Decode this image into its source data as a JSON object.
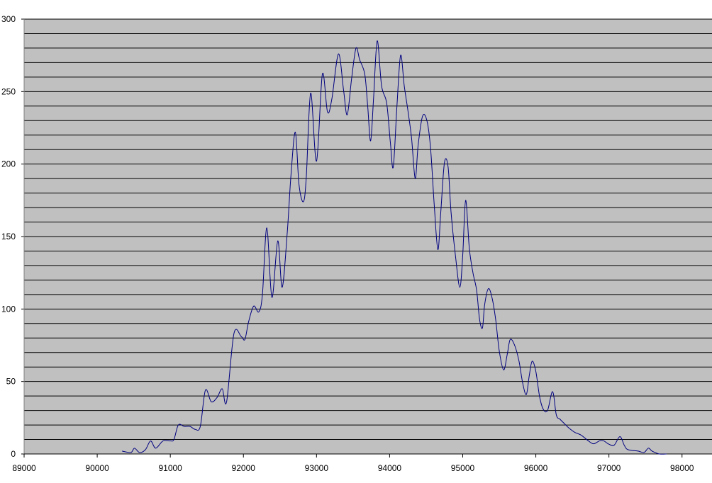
{
  "chart_data": {
    "type": "line",
    "xlim": [
      89000,
      98410
    ],
    "xticks": [
      89000,
      90000,
      91000,
      92000,
      93000,
      94000,
      95000,
      96000,
      97000,
      98000
    ],
    "ylim": [
      0,
      300
    ],
    "yticks": [
      0,
      50,
      100,
      150,
      200,
      250,
      300
    ],
    "ygrid": [
      10,
      20,
      30,
      40,
      50,
      60,
      70,
      80,
      90,
      100,
      110,
      120,
      130,
      140,
      150,
      160,
      170,
      180,
      190,
      200,
      210,
      220,
      230,
      240,
      250,
      260,
      270,
      280,
      290,
      300
    ],
    "grid": true,
    "plot_color": "#c0c0c0",
    "series": [
      {
        "color": "#000080",
        "x": [
          90340,
          90460,
          90510,
          90580,
          90660,
          90730,
          90800,
          90900,
          91000,
          91050,
          91110,
          91190,
          91270,
          91340,
          91410,
          91480,
          91560,
          91640,
          91710,
          91770,
          91870,
          91970,
          92020,
          92070,
          92140,
          92210,
          92260,
          92320,
          92390,
          92470,
          92530,
          92600,
          92650,
          92710,
          92760,
          92820,
          92860,
          92920,
          93000,
          93080,
          93150,
          93210,
          93300,
          93370,
          93420,
          93480,
          93540,
          93590,
          93660,
          93700,
          93740,
          93780,
          93830,
          93890,
          93960,
          94010,
          94050,
          94100,
          94150,
          94200,
          94250,
          94300,
          94350,
          94390,
          94450,
          94510,
          94560,
          94610,
          94660,
          94700,
          94750,
          94800,
          94840,
          94900,
          94960,
          95000,
          95040,
          95090,
          95140,
          95190,
          95230,
          95270,
          95300,
          95350,
          95400,
          95450,
          95500,
          95560,
          95610,
          95650,
          95710,
          95770,
          95820,
          95870,
          95910,
          95950,
          96000,
          96050,
          96100,
          96160,
          96230,
          96280,
          96330,
          96390,
          96450,
          96530,
          96620,
          96720,
          96790,
          96870,
          96930,
          96990,
          97070,
          97150,
          97210,
          97260,
          97400,
          97480,
          97540,
          97590,
          97690,
          97790
        ],
        "values": [
          2,
          1,
          4,
          1,
          3,
          9,
          4,
          9,
          9,
          10,
          20,
          19,
          19,
          17,
          19,
          44,
          36,
          39,
          45,
          36,
          83,
          81,
          79,
          91,
          102,
          98,
          110,
          156,
          108,
          147,
          115,
          153,
          192,
          222,
          186,
          174,
          191,
          249,
          202,
          262,
          236,
          245,
          276,
          251,
          234,
          259,
          280,
          272,
          262,
          240,
          216,
          245,
          285,
          254,
          242,
          215,
          198,
          240,
          275,
          254,
          237,
          218,
          190,
          213,
          233,
          230,
          211,
          172,
          141,
          167,
          201,
          198,
          167,
          137,
          115,
          137,
          175,
          142,
          125,
          113,
          93,
          87,
          103,
          114,
          108,
          93,
          71,
          58,
          69,
          79,
          75,
          64,
          49,
          41,
          54,
          64,
          57,
          40,
          31,
          30,
          43,
          27,
          24,
          21,
          18,
          15,
          13,
          9,
          7,
          9,
          9,
          7,
          6,
          12,
          6,
          3,
          2,
          1,
          4,
          2,
          0,
          0
        ]
      }
    ]
  }
}
